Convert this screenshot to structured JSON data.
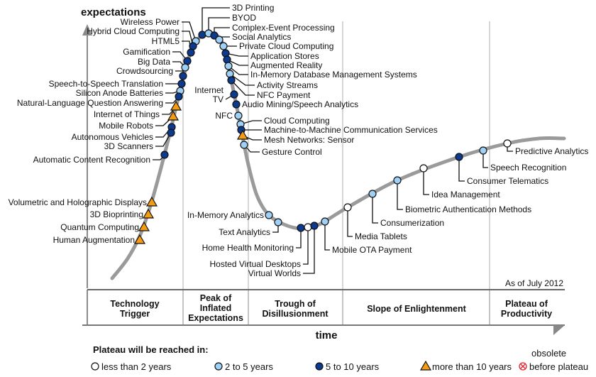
{
  "axis": {
    "y_label": "expectations",
    "x_label": "time"
  },
  "as_of": "As of July 2012",
  "phases": [
    {
      "lines": [
        "Technology",
        "Trigger"
      ]
    },
    {
      "lines": [
        "Peak of",
        "Inflated",
        "Expectations"
      ]
    },
    {
      "lines": [
        "Trough of",
        "Disillusionment"
      ]
    },
    {
      "lines": [
        "Slope of Enlightenment"
      ]
    },
    {
      "lines": [
        "Plateau of",
        "Productivity"
      ]
    }
  ],
  "colors": {
    "lt2": "#ffffff",
    "2to5": "#9fd0f5",
    "5to10": "#0b3a8e",
    "gt10": "#f39c12",
    "obsolete": "#e0202a",
    "curve": "#9a9a9a"
  },
  "legend": {
    "title": "Plateau will be reached in:",
    "items": [
      {
        "key": "lt2",
        "label": "less than 2 years",
        "icon": "white-circle"
      },
      {
        "key": "2to5",
        "label": "2 to 5 years",
        "icon": "light-blue-circle"
      },
      {
        "key": "5to10",
        "label": "5 to 10 years",
        "icon": "dark-blue-circle"
      },
      {
        "key": "gt10",
        "label": "more than 10 years",
        "icon": "orange-triangle"
      },
      {
        "key": "obsolete",
        "label_lines": [
          "obsolete",
          "before plateau"
        ],
        "icon": "red-crossed-circle"
      }
    ]
  },
  "technologies": [
    {
      "name": "Wireless Power",
      "plateau": "2to5"
    },
    {
      "name": "Hybrid Cloud Computing",
      "plateau": "5to10"
    },
    {
      "name": "HTML5",
      "plateau": "5to10"
    },
    {
      "name": "Gamification",
      "plateau": "5to10"
    },
    {
      "name": "Big Data",
      "plateau": "2to5"
    },
    {
      "name": "Crowdsourcing",
      "plateau": "5to10"
    },
    {
      "name": "Speech-to-Speech Translation",
      "plateau": "5to10"
    },
    {
      "name": "Silicon Anode Batteries",
      "plateau": "2to5"
    },
    {
      "name": "Natural-Language Question Answering",
      "plateau": "5to10"
    },
    {
      "name": "Internet of Things",
      "plateau": "gt10"
    },
    {
      "name": "Mobile Robots",
      "plateau": "gt10"
    },
    {
      "name": "Autonomous Vehicles",
      "plateau": "5to10"
    },
    {
      "name": "3D Scanners",
      "plateau": "5to10"
    },
    {
      "name": "Automatic Content Recognition",
      "plateau": "5to10"
    },
    {
      "name": "Volumetric and Holographic Displays",
      "plateau": "gt10"
    },
    {
      "name": "3D Bioprinting",
      "plateau": "gt10"
    },
    {
      "name": "Quantum Computing",
      "plateau": "gt10"
    },
    {
      "name": "Human Augmentation",
      "plateau": "gt10"
    },
    {
      "name": "3D Printing",
      "plateau": "5to10"
    },
    {
      "name": "BYOD",
      "plateau": "2to5"
    },
    {
      "name": "Complex-Event Processing",
      "plateau": "5to10"
    },
    {
      "name": "Social Analytics",
      "plateau": "2to5"
    },
    {
      "name": "Private Cloud Computing",
      "plateau": "2to5"
    },
    {
      "name": "Application Stores",
      "plateau": "5to10"
    },
    {
      "name": "Augmented Reality",
      "plateau": "5to10"
    },
    {
      "name": "In-Memory Database Management Systems",
      "plateau": "2to5"
    },
    {
      "name": "Activity Streams",
      "plateau": "2to5"
    },
    {
      "name": "NFC Payment",
      "plateau": "5to10"
    },
    {
      "name": "Internet TV",
      "name_lines": [
        "Internet",
        "TV"
      ],
      "plateau": "5to10"
    },
    {
      "name": "Audio Mining/Speech Analytics",
      "plateau": "5to10"
    },
    {
      "name": "NFC",
      "plateau": "2to5"
    },
    {
      "name": "Cloud Computing",
      "plateau": "2to5"
    },
    {
      "name": "Machine-to-Machine Communication Services",
      "plateau": "5to10"
    },
    {
      "name": "Mesh Networks: Sensor",
      "plateau": "gt10"
    },
    {
      "name": "Gesture Control",
      "plateau": "2to5"
    },
    {
      "name": "In-Memory Analytics",
      "plateau": "2to5"
    },
    {
      "name": "Text Analytics",
      "plateau": "2to5"
    },
    {
      "name": "Home Health Monitoring",
      "plateau": "5to10"
    },
    {
      "name": "Hosted Virtual Desktops",
      "plateau": "lt2"
    },
    {
      "name": "Virtual Worlds",
      "plateau": "5to10"
    },
    {
      "name": "Mobile OTA Payment",
      "plateau": "2to5"
    },
    {
      "name": "Media Tablets",
      "plateau": "lt2"
    },
    {
      "name": "Consumerization",
      "plateau": "2to5"
    },
    {
      "name": "Biometric Authentication Methods",
      "plateau": "2to5"
    },
    {
      "name": "Idea Management",
      "plateau": "lt2"
    },
    {
      "name": "Consumer Telematics",
      "plateau": "5to10"
    },
    {
      "name": "Speech Recognition",
      "plateau": "2to5"
    },
    {
      "name": "Predictive Analytics",
      "plateau": "lt2"
    }
  ]
}
